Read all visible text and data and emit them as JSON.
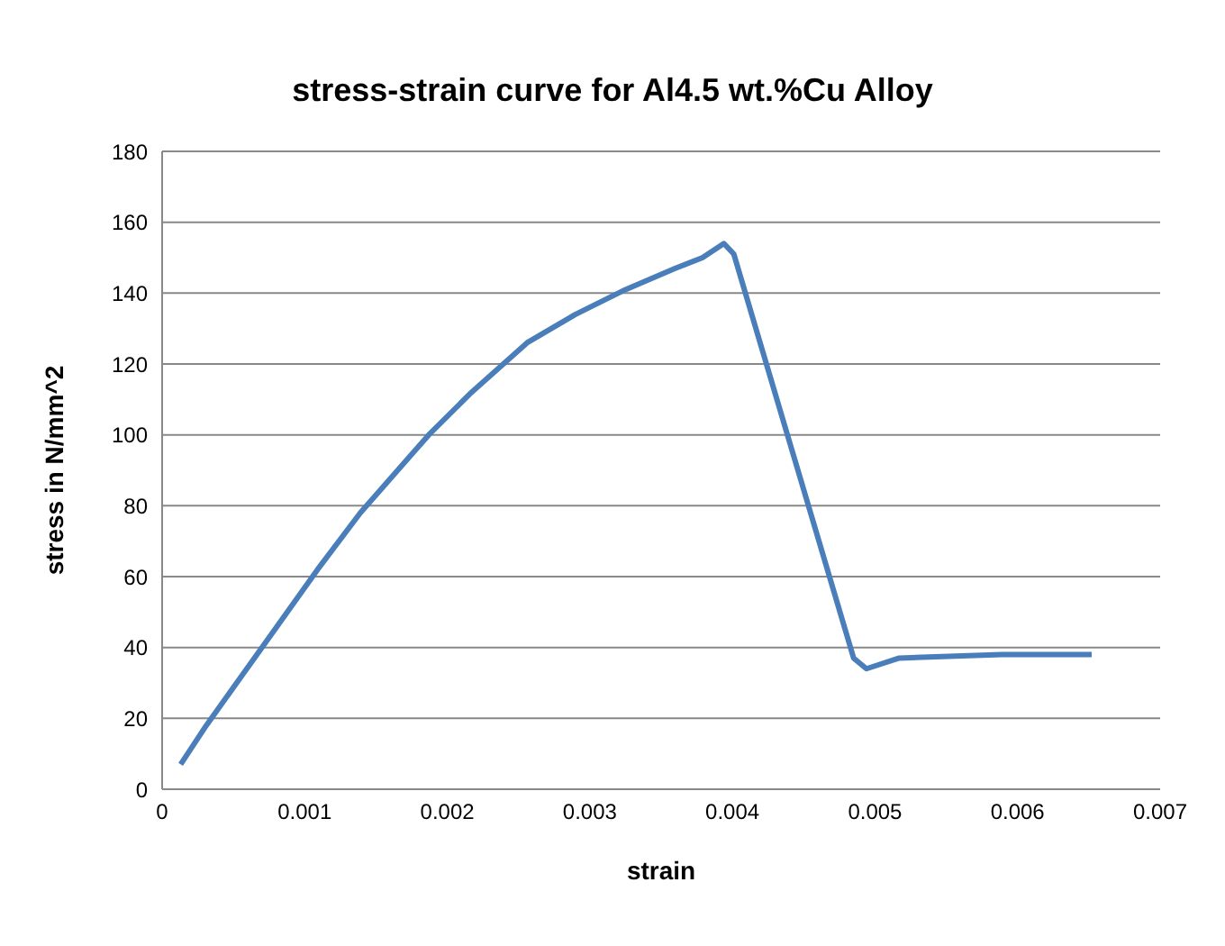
{
  "chart_data": {
    "type": "line",
    "title": "stress-strain curve for Al4.5 wt.%Cu Alloy",
    "xlabel": "strain",
    "ylabel": "stress in N/mm^2",
    "x": [
      0.00013,
      0.00031,
      0.0007,
      0.00109,
      0.00139,
      0.00187,
      0.00217,
      0.00256,
      0.0029,
      0.00325,
      0.0036,
      0.00379,
      0.00394,
      0.00401,
      0.00485,
      0.00494,
      0.00517,
      0.00589,
      0.00652
    ],
    "series": [
      {
        "color": "#4a7ebb",
        "values": [
          7,
          18,
          40,
          62,
          78,
          100,
          112,
          126,
          134,
          141,
          147,
          150,
          154,
          151,
          37,
          34,
          37,
          38,
          38
        ]
      }
    ],
    "xlim": [
      0,
      0.007
    ],
    "xticks": [
      0,
      0.001,
      0.002,
      0.003,
      0.004,
      0.005,
      0.006,
      0.007
    ],
    "ylim": [
      0,
      180
    ],
    "yticks": [
      0,
      20,
      40,
      60,
      80,
      100,
      120,
      140,
      160,
      180
    ],
    "grid": "y",
    "marker": "none",
    "line_style": "solid",
    "legend": false
  }
}
